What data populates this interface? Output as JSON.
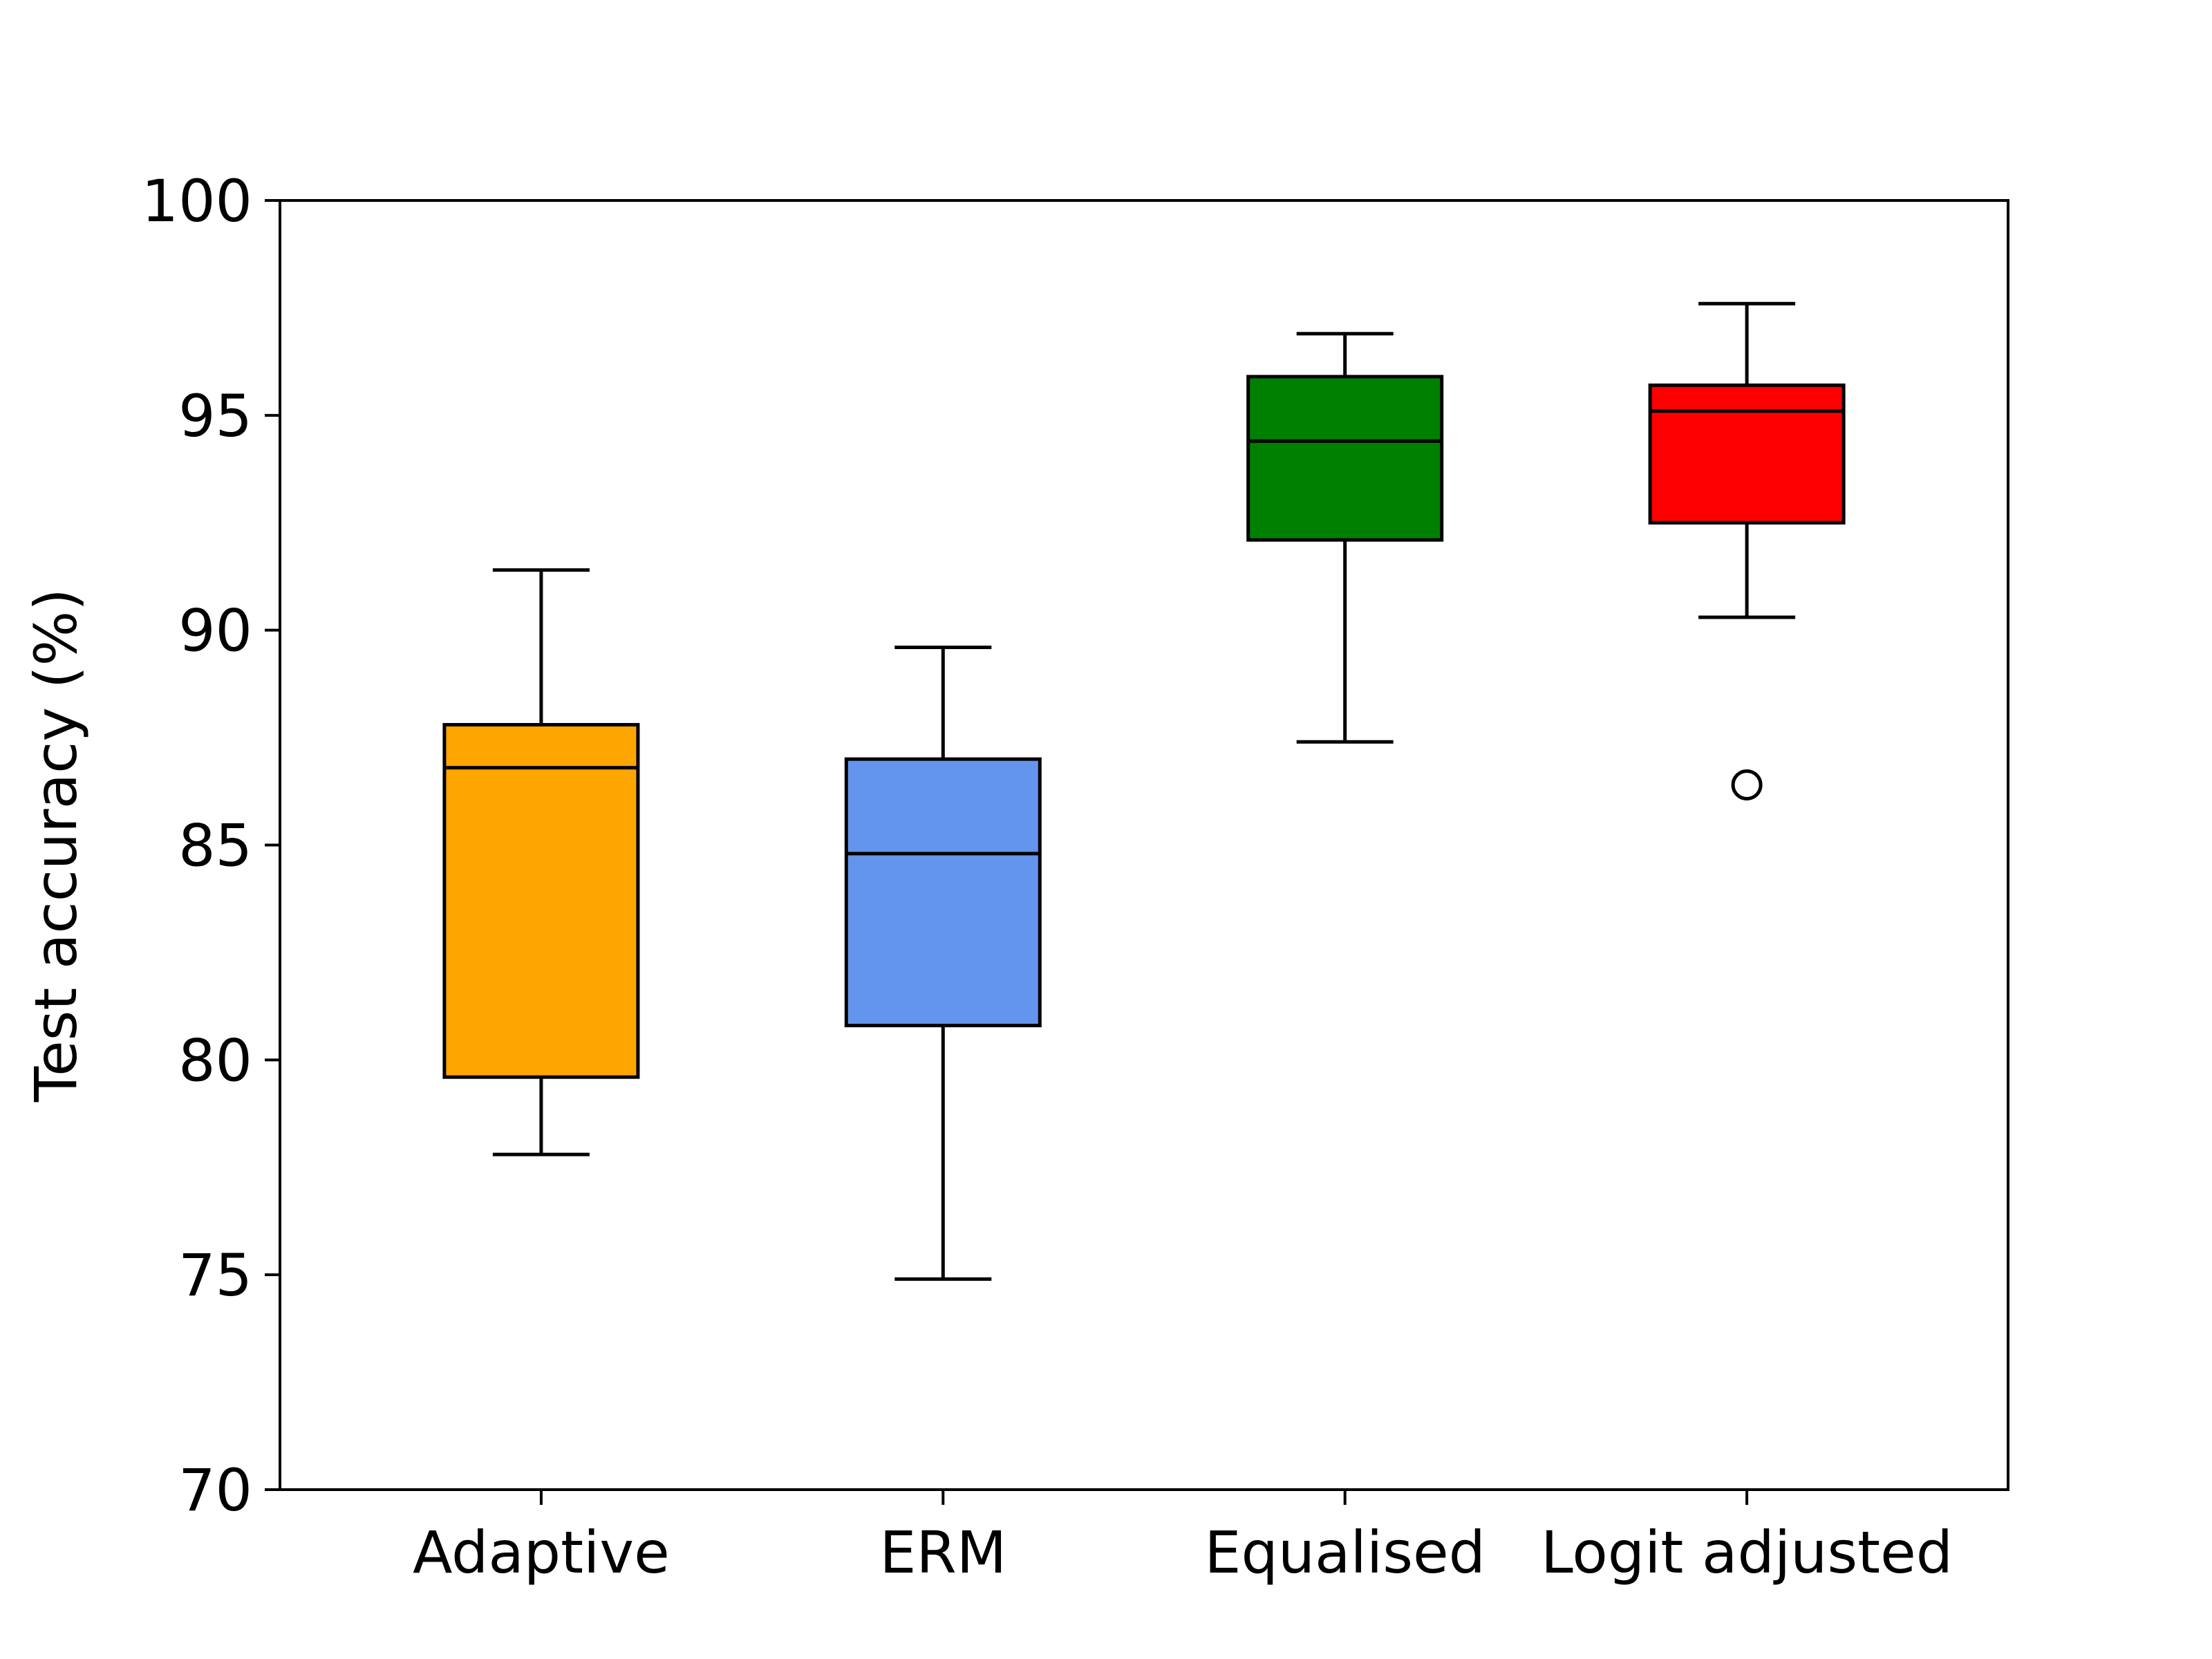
{
  "chart_data": {
    "type": "box",
    "title": "",
    "xlabel": "",
    "ylabel": "Test accuracy (%)",
    "ylim": [
      70,
      100
    ],
    "yticks": [
      70,
      75,
      80,
      85,
      90,
      95,
      100
    ],
    "grid": false,
    "legend": "none",
    "categories": [
      "Adaptive",
      "ERM",
      "Equalised",
      "Logit adjusted"
    ],
    "boxes": [
      {
        "category": "Adaptive",
        "color": "#ffa500",
        "whisker_low": 77.8,
        "q1": 79.6,
        "median": 86.8,
        "q3": 87.8,
        "whisker_high": 91.4,
        "outliers": []
      },
      {
        "category": "ERM",
        "color": "#6495ed",
        "whisker_low": 74.9,
        "q1": 80.8,
        "median": 84.8,
        "q3": 87.0,
        "whisker_high": 89.6,
        "outliers": []
      },
      {
        "category": "Equalised",
        "color": "#008000",
        "whisker_low": 87.4,
        "q1": 92.1,
        "median": 94.4,
        "q3": 95.9,
        "whisker_high": 96.9,
        "outliers": []
      },
      {
        "category": "Logit adjusted",
        "color": "#ff0000",
        "whisker_low": 90.3,
        "q1": 92.5,
        "median": 95.1,
        "q3": 95.7,
        "whisker_high": 97.6,
        "outliers": [
          86.4
        ]
      }
    ]
  }
}
